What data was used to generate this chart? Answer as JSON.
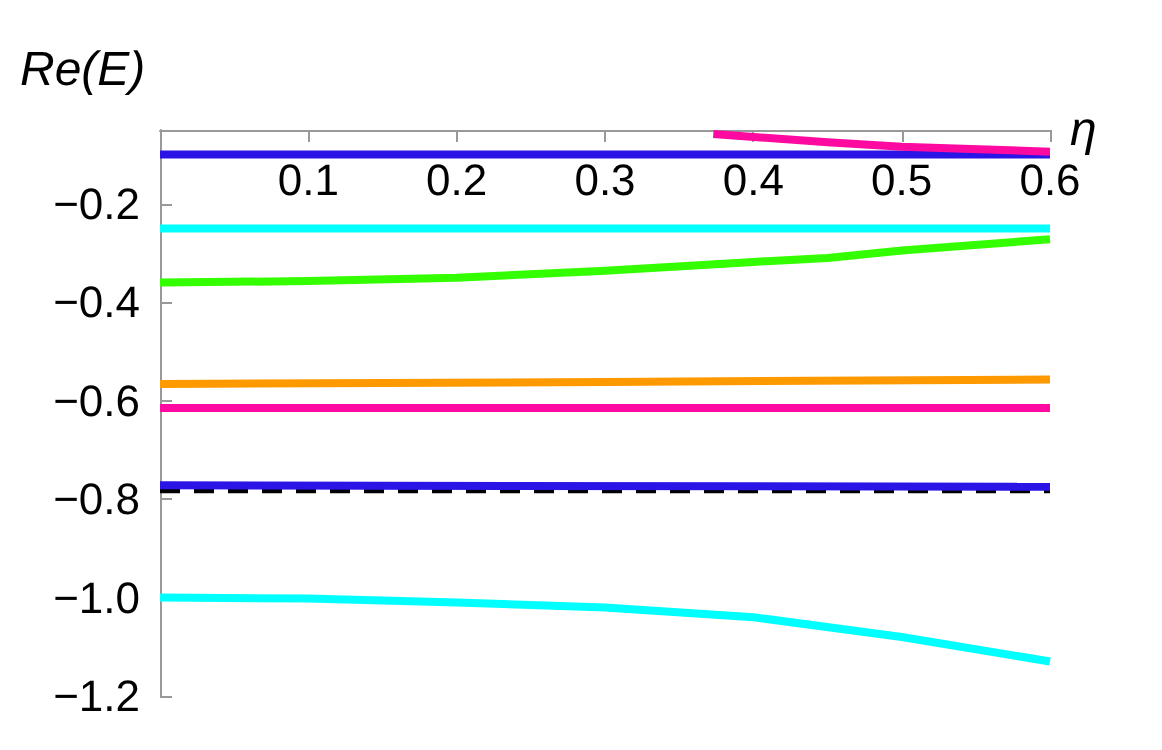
{
  "chart_data": {
    "type": "line",
    "xlabel": "η",
    "ylabel": "Re(E)",
    "xlim": [
      0,
      0.6
    ],
    "ylim": [
      -1.2,
      -0.05
    ],
    "xticks": [
      0.1,
      0.2,
      0.3,
      0.4,
      0.5,
      0.6
    ],
    "yticks": [
      {
        "value": -0.2,
        "label": "−0.2"
      },
      {
        "value": -0.4,
        "label": "−0.4"
      },
      {
        "value": -0.6,
        "label": "−0.6"
      },
      {
        "value": -0.8,
        "label": "−0.8"
      },
      {
        "value": -1.0,
        "label": "−1.0"
      },
      {
        "value": -1.2,
        "label": "−1.2"
      }
    ],
    "grid": false,
    "marker": "none",
    "series": [
      {
        "color": "#000000",
        "line_style": "dashed",
        "x": [
          0,
          0.6
        ],
        "values": [
          -0.78,
          -0.78
        ]
      },
      {
        "color": "#2a14e6",
        "x": [
          0,
          0.6
        ],
        "values": [
          -0.1,
          -0.1
        ]
      },
      {
        "color": "#ff0aa0",
        "x": [
          0.373,
          0.45,
          0.5,
          0.6
        ],
        "values": [
          -0.058,
          -0.075,
          -0.084,
          -0.094
        ]
      },
      {
        "color": "#00ffff",
        "x": [
          0,
          0.6
        ],
        "values": [
          -0.25,
          -0.25
        ]
      },
      {
        "color": "#33ff00",
        "x": [
          0,
          0.1,
          0.2,
          0.3,
          0.4,
          0.45,
          0.5,
          0.6
        ],
        "values": [
          -0.36,
          -0.357,
          -0.35,
          -0.336,
          -0.318,
          -0.31,
          -0.295,
          -0.272
        ]
      },
      {
        "color": "#ff9900",
        "x": [
          0,
          0.3,
          0.6
        ],
        "values": [
          -0.566,
          -0.562,
          -0.557
        ]
      },
      {
        "color": "#ff0aa0",
        "x": [
          0,
          0.6
        ],
        "values": [
          -0.615,
          -0.615
        ]
      },
      {
        "color": "#2a14e6",
        "x": [
          0,
          0.6
        ],
        "values": [
          -0.772,
          -0.775
        ]
      },
      {
        "color": "#00ffff",
        "x": [
          0,
          0.1,
          0.2,
          0.3,
          0.4,
          0.5,
          0.6
        ],
        "values": [
          -1.0,
          -1.002,
          -1.01,
          -1.02,
          -1.04,
          -1.08,
          -1.13
        ]
      }
    ]
  }
}
